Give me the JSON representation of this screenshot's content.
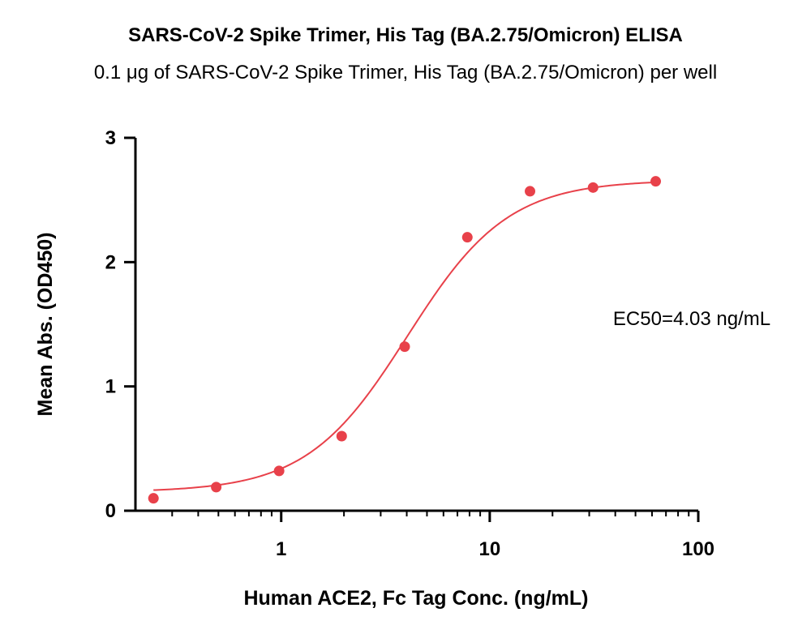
{
  "chart_data": {
    "type": "scatter",
    "title": "SARS-CoV-2 Spike Trimer, His Tag (BA.2.75/Omicron) ELISA",
    "subtitle": "0.1 μg of SARS-CoV-2 Spike Trimer, His Tag (BA.2.75/Omicron) per well",
    "xlabel": "Human ACE2, Fc Tag Conc. (ng/mL)",
    "ylabel": "Mean Abs. (OD450)",
    "xscale": "log",
    "xlim": [
      0.2,
      100
    ],
    "ylim": [
      0,
      3
    ],
    "x_ticks": [
      1,
      10,
      100
    ],
    "x_tick_labels": [
      "1",
      "10",
      "100"
    ],
    "y_ticks": [
      0,
      1,
      2,
      3
    ],
    "y_tick_labels": [
      "0",
      "1",
      "2",
      "3"
    ],
    "grid": false,
    "series": [
      {
        "color": "#e8414a",
        "x": [
          0.244,
          0.488,
          0.977,
          1.95,
          3.91,
          7.81,
          15.6,
          31.3,
          62.5
        ],
        "y": [
          0.1,
          0.19,
          0.32,
          0.6,
          1.32,
          2.2,
          2.57,
          2.6,
          2.65
        ]
      }
    ],
    "fit": {
      "model": "4PL",
      "bottom": 0.15,
      "top": 2.66,
      "ec50": 4.03,
      "hill": 1.8,
      "color": "#e8414a"
    },
    "annotations": [
      "EC50=4.03 ng/mL"
    ]
  }
}
